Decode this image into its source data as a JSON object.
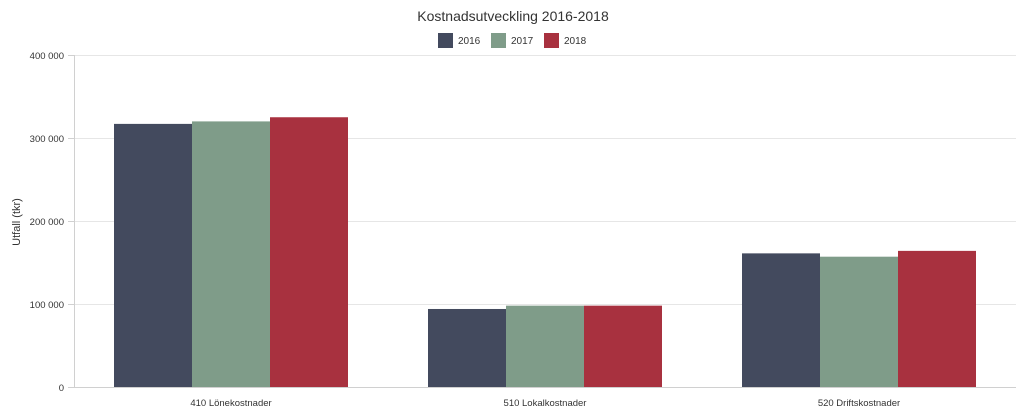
{
  "chart_data": {
    "type": "bar",
    "title": "Kostnadsutveckling 2016-2018",
    "xlabel": "",
    "ylabel": "Utfall (tkr)",
    "ylim": [
      0,
      400000
    ],
    "y_ticks": [
      "0",
      "100 000",
      "200 000",
      "300 000",
      "400 000"
    ],
    "y_tick_values": [
      0,
      100000,
      200000,
      300000,
      400000
    ],
    "grid": true,
    "legend_position": "top-center",
    "categories": [
      "410 Lönekostnader",
      "510 Lokalkostnader",
      "520 Driftskostnader"
    ],
    "series": [
      {
        "name": "2016",
        "color": "#434a5e",
        "values": [
          317000,
          94000,
          161000
        ]
      },
      {
        "name": "2017",
        "color": "#7f9c89",
        "values": [
          320000,
          98000,
          157000
        ]
      },
      {
        "name": "2018",
        "color": "#a8313f",
        "values": [
          325000,
          98000,
          164000
        ]
      }
    ]
  }
}
